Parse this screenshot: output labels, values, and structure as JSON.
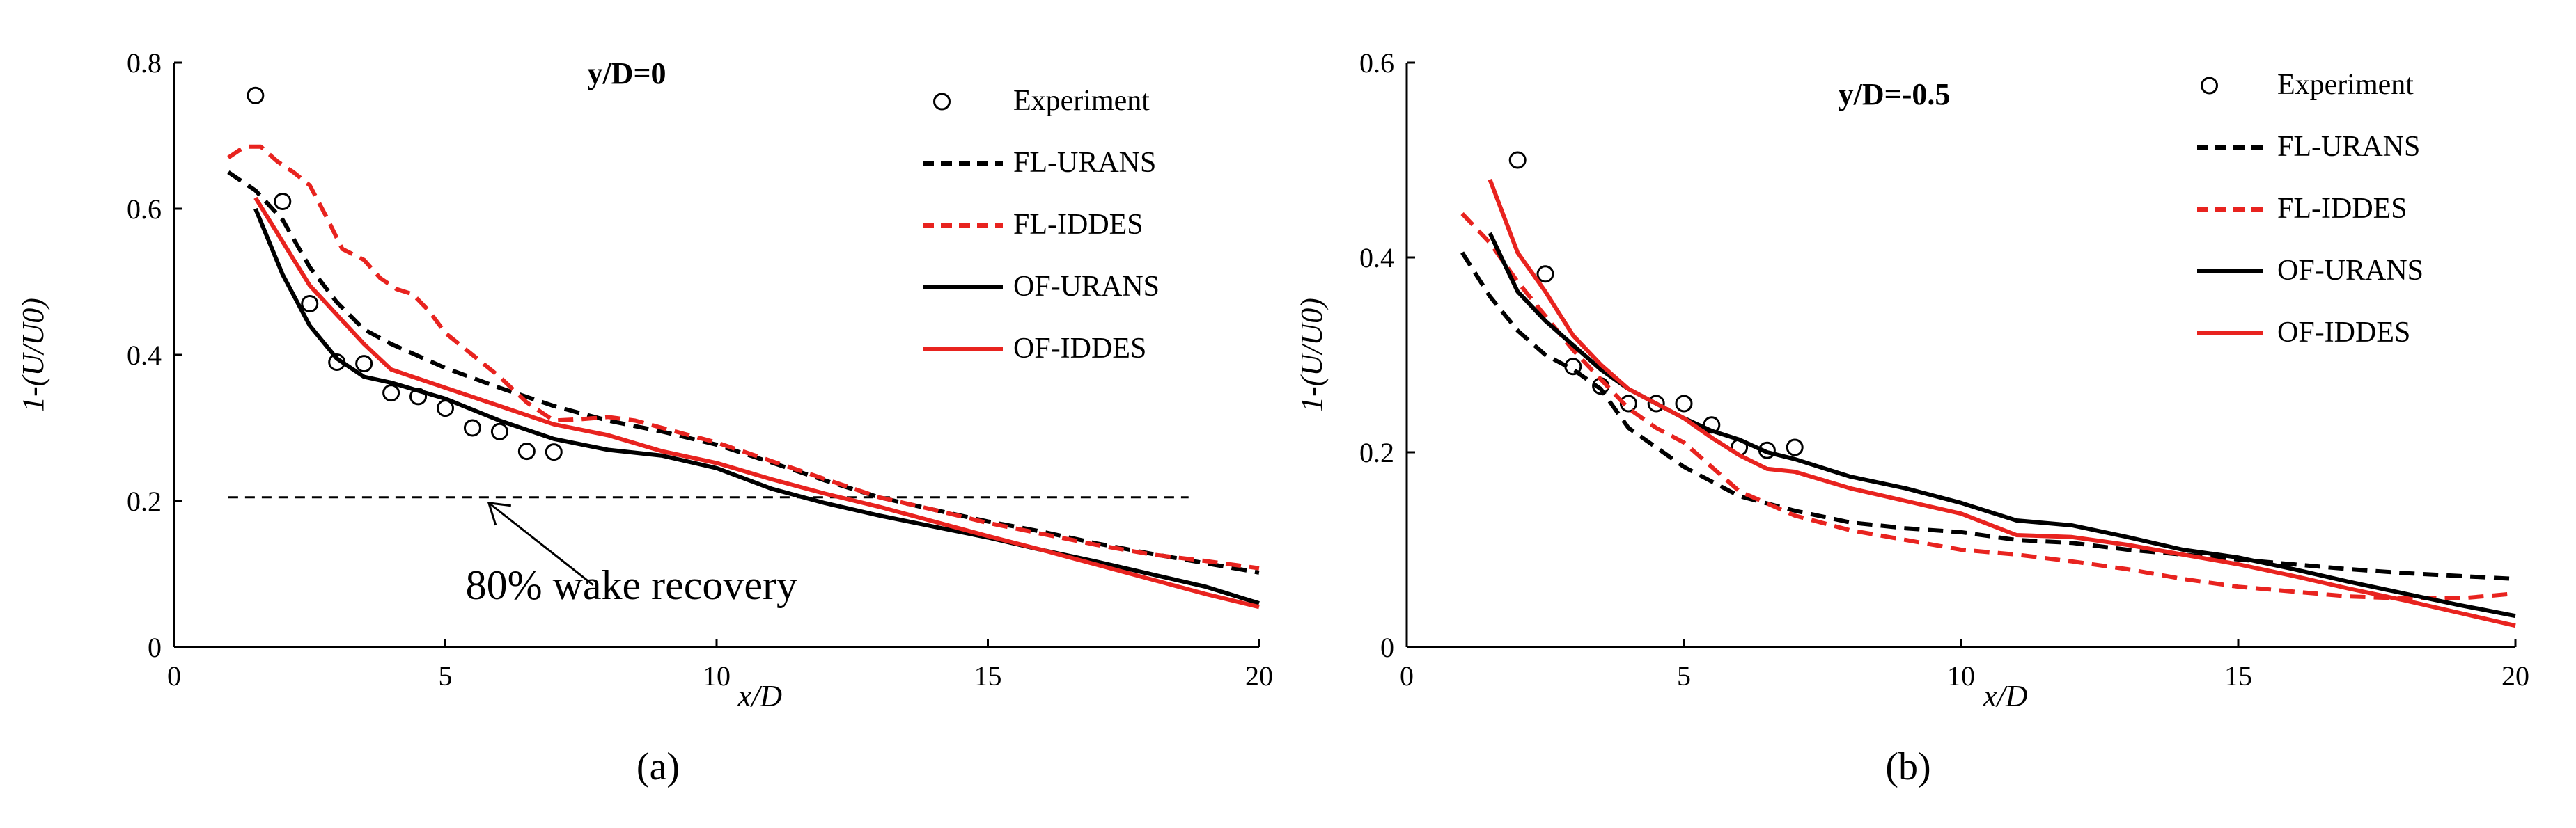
{
  "figure": {
    "captions": [
      "(a)",
      "(b)"
    ]
  },
  "colors": {
    "black": "#000000",
    "red": "#e8231f"
  },
  "chart_data": [
    {
      "type": "line",
      "title": "y/D=0",
      "xlabel": "x/D",
      "ylabel": "1-(U/U0)",
      "xlim": [
        0,
        20
      ],
      "ylim": [
        0,
        0.8
      ],
      "xticks": [
        0,
        5,
        10,
        15,
        20
      ],
      "yticks": [
        0,
        0.2,
        0.4,
        0.6,
        0.8
      ],
      "legend": [
        "Experiment",
        "FL-URANS",
        "FL-IDDES",
        "OF-URANS",
        "OF-IDDES"
      ],
      "series": [
        {
          "name": "Experiment",
          "style": "marker-circle",
          "color": "#000000",
          "x": [
            1.5,
            2,
            2.5,
            3,
            3.5,
            4,
            4.5,
            5,
            5.5,
            6,
            6.5,
            7
          ],
          "y": [
            0.755,
            0.61,
            0.47,
            0.39,
            0.388,
            0.348,
            0.343,
            0.327,
            0.3,
            0.295,
            0.268,
            0.267
          ]
        },
        {
          "name": "FL-URANS",
          "style": "dashed",
          "color": "#000000",
          "x": [
            1,
            1.5,
            2,
            2.5,
            3,
            3.5,
            4,
            5,
            6,
            7,
            8,
            9,
            10,
            11,
            12,
            13,
            14,
            15,
            16,
            17,
            18,
            19,
            20
          ],
          "y": [
            0.65,
            0.625,
            0.585,
            0.52,
            0.472,
            0.435,
            0.415,
            0.382,
            0.355,
            0.33,
            0.31,
            0.295,
            0.277,
            0.253,
            0.228,
            0.205,
            0.188,
            0.172,
            0.158,
            0.142,
            0.128,
            0.115,
            0.102
          ]
        },
        {
          "name": "FL-IDDES",
          "style": "dashed",
          "color": "#e8231f",
          "x": [
            1,
            1.3,
            1.6,
            1.9,
            2.2,
            2.5,
            2.8,
            3.1,
            3.5,
            3.8,
            4.1,
            4.4,
            4.7,
            5,
            5.5,
            6,
            6.5,
            7,
            7.5,
            8,
            8.5,
            9,
            10,
            11,
            12,
            13,
            14,
            15,
            16,
            17,
            18,
            19,
            20
          ],
          "y": [
            0.67,
            0.685,
            0.685,
            0.665,
            0.65,
            0.632,
            0.59,
            0.545,
            0.53,
            0.505,
            0.49,
            0.483,
            0.46,
            0.43,
            0.4,
            0.37,
            0.335,
            0.31,
            0.312,
            0.315,
            0.31,
            0.3,
            0.28,
            0.255,
            0.23,
            0.205,
            0.188,
            0.17,
            0.155,
            0.14,
            0.127,
            0.118,
            0.108
          ]
        },
        {
          "name": "OF-URANS",
          "style": "solid",
          "color": "#000000",
          "x": [
            1.5,
            2,
            2.5,
            3,
            3.5,
            4,
            5,
            6,
            7,
            8,
            9,
            10,
            11,
            12,
            13,
            14,
            15,
            16,
            17,
            18,
            19,
            20
          ],
          "y": [
            0.6,
            0.51,
            0.44,
            0.395,
            0.37,
            0.362,
            0.34,
            0.31,
            0.285,
            0.27,
            0.262,
            0.245,
            0.217,
            0.197,
            0.18,
            0.165,
            0.15,
            0.133,
            0.117,
            0.1,
            0.083,
            0.06
          ]
        },
        {
          "name": "OF-IDDES",
          "style": "solid",
          "color": "#e8231f",
          "x": [
            1.5,
            2,
            2.5,
            3,
            3.5,
            4,
            5,
            6,
            7,
            8,
            9,
            10,
            11,
            12,
            13,
            14,
            15,
            16,
            17,
            18,
            19,
            20
          ],
          "y": [
            0.615,
            0.555,
            0.495,
            0.455,
            0.415,
            0.38,
            0.355,
            0.33,
            0.305,
            0.29,
            0.268,
            0.252,
            0.23,
            0.21,
            0.192,
            0.172,
            0.152,
            0.133,
            0.113,
            0.093,
            0.073,
            0.055
          ]
        }
      ],
      "reference_line": {
        "y": 0.205,
        "x_range": [
          1,
          18.7
        ],
        "style": "dashed"
      },
      "annotation": {
        "text": "80% wake recovery",
        "points_to": [
          5.8,
          0.205
        ]
      }
    },
    {
      "type": "line",
      "title": "y/D=-0.5",
      "xlabel": "x/D",
      "ylabel": "1-(U/U0)",
      "xlim": [
        0,
        20
      ],
      "ylim": [
        0,
        0.6
      ],
      "xticks": [
        0,
        5,
        10,
        15,
        20
      ],
      "yticks": [
        0,
        0.2,
        0.4,
        0.6
      ],
      "legend": [
        "Experiment",
        "FL-URANS",
        "FL-IDDES",
        "OF-URANS",
        "OF-IDDES"
      ],
      "series": [
        {
          "name": "Experiment",
          "style": "marker-circle",
          "color": "#000000",
          "x": [
            2,
            2.5,
            3,
            3.5,
            4,
            4.5,
            5,
            5.5,
            6,
            6.5,
            7
          ],
          "y": [
            0.5,
            0.383,
            0.288,
            0.268,
            0.25,
            0.25,
            0.25,
            0.228,
            0.205,
            0.202,
            0.205
          ]
        },
        {
          "name": "FL-URANS",
          "style": "dashed",
          "color": "#000000",
          "x": [
            1,
            1.5,
            2,
            2.5,
            3,
            3.5,
            4,
            5,
            6,
            7,
            8,
            9,
            10,
            11,
            12,
            13,
            14,
            15,
            16,
            17,
            18,
            19,
            20
          ],
          "y": [
            0.405,
            0.36,
            0.325,
            0.3,
            0.285,
            0.265,
            0.225,
            0.185,
            0.155,
            0.14,
            0.128,
            0.122,
            0.118,
            0.11,
            0.107,
            0.1,
            0.095,
            0.09,
            0.085,
            0.08,
            0.076,
            0.073,
            0.07
          ]
        },
        {
          "name": "FL-IDDES",
          "style": "dashed",
          "color": "#e8231f",
          "x": [
            1,
            1.5,
            2,
            2.5,
            3,
            3.5,
            4,
            4.5,
            5,
            5.5,
            6,
            7,
            8,
            9,
            10,
            11,
            12,
            13,
            14,
            15,
            16,
            17,
            18,
            19,
            20
          ],
          "y": [
            0.445,
            0.415,
            0.375,
            0.34,
            0.305,
            0.275,
            0.245,
            0.225,
            0.21,
            0.185,
            0.16,
            0.135,
            0.12,
            0.11,
            0.1,
            0.095,
            0.088,
            0.08,
            0.07,
            0.062,
            0.057,
            0.052,
            0.05,
            0.05,
            0.055
          ]
        },
        {
          "name": "OF-URANS",
          "style": "solid",
          "color": "#000000",
          "x": [
            1.5,
            2,
            2.5,
            3,
            3.5,
            4,
            4.5,
            5,
            5.5,
            6,
            6.5,
            7,
            8,
            9,
            10,
            11,
            12,
            13,
            14,
            15,
            16,
            17,
            18,
            19,
            20
          ],
          "y": [
            0.425,
            0.365,
            0.335,
            0.31,
            0.285,
            0.265,
            0.25,
            0.235,
            0.222,
            0.213,
            0.2,
            0.193,
            0.175,
            0.163,
            0.148,
            0.13,
            0.125,
            0.113,
            0.1,
            0.092,
            0.08,
            0.067,
            0.055,
            0.043,
            0.032
          ]
        },
        {
          "name": "OF-IDDES",
          "style": "solid",
          "color": "#e8231f",
          "x": [
            1.5,
            2,
            2.5,
            3,
            3.5,
            4,
            4.5,
            5,
            5.5,
            6,
            6.5,
            7,
            8,
            9,
            10,
            11,
            12,
            13,
            14,
            15,
            16,
            17,
            18,
            19,
            20
          ],
          "y": [
            0.48,
            0.405,
            0.365,
            0.32,
            0.29,
            0.265,
            0.25,
            0.235,
            0.215,
            0.197,
            0.183,
            0.18,
            0.163,
            0.15,
            0.137,
            0.115,
            0.113,
            0.105,
            0.095,
            0.085,
            0.073,
            0.06,
            0.048,
            0.035,
            0.022
          ]
        }
      ]
    }
  ]
}
